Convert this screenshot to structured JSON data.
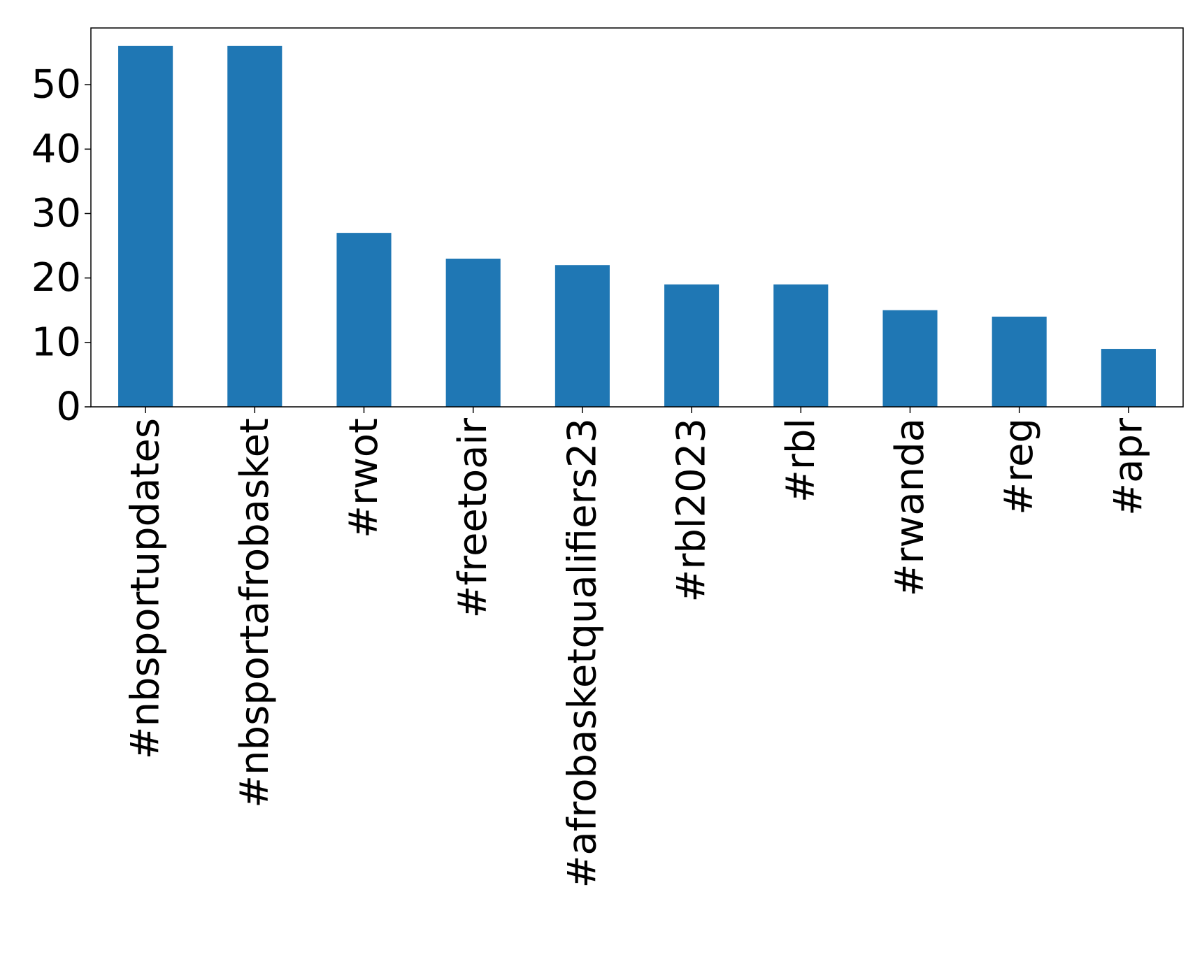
{
  "chart_data": {
    "type": "bar",
    "title": "",
    "xlabel": "",
    "ylabel": "",
    "categories": [
      "#nbsportupdates",
      "#nbsportafrobasket",
      "#rwot",
      "#freetoair",
      "#afrobasketqualifiers23",
      "#rbl2023",
      "#rbl",
      "#rwanda",
      "#reg",
      "#apr"
    ],
    "values": [
      56,
      56,
      27,
      23,
      22,
      19,
      19,
      15,
      14,
      9
    ],
    "ylim": [
      0,
      58.8
    ],
    "yticks": [
      0,
      10,
      20,
      30,
      40,
      50
    ],
    "bar_color": "#1f77b4",
    "grid": false,
    "legend": false
  }
}
